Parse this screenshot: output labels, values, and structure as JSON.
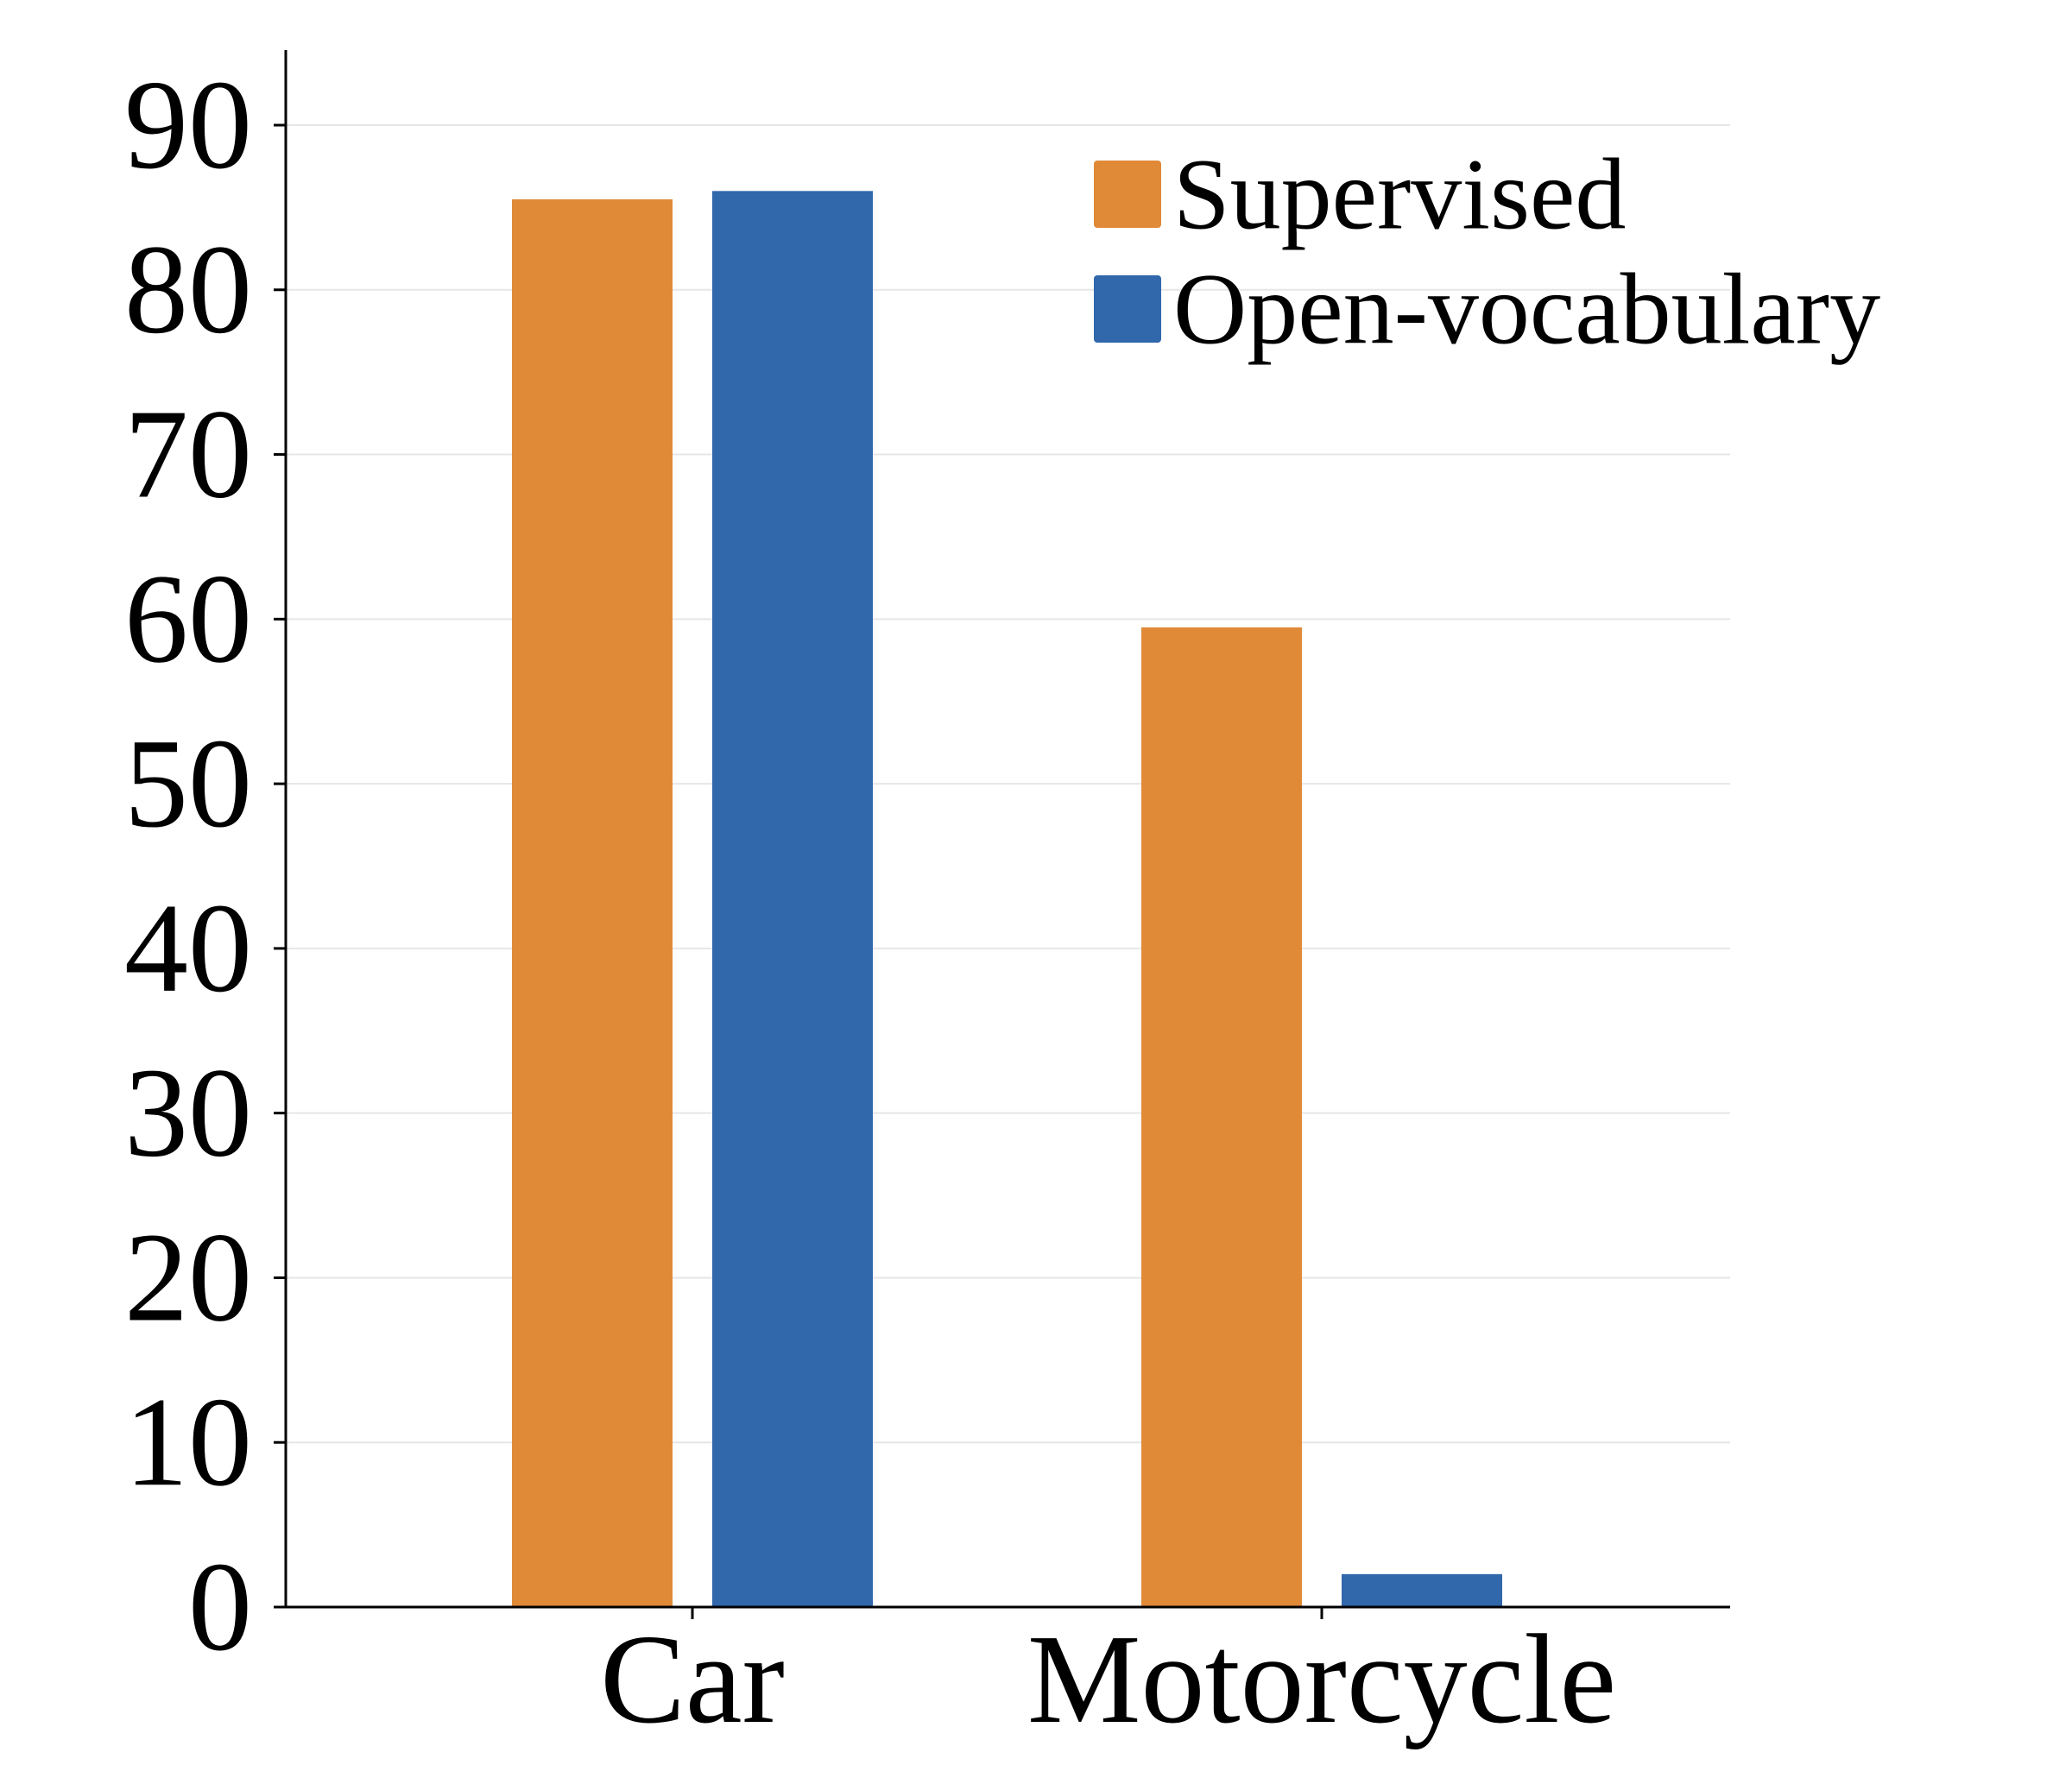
{
  "chart_data": {
    "type": "bar",
    "title": "",
    "xlabel": "",
    "ylabel": "",
    "categories": [
      "Car",
      "Motorcycle"
    ],
    "series": [
      {
        "name": "Supervised",
        "color": "#e08a38",
        "values": [
          85.5,
          59.5
        ]
      },
      {
        "name": "Open-vocabulary",
        "color": "#3167ab",
        "values": [
          86.0,
          2.0
        ]
      }
    ],
    "ylim": [
      0,
      90
    ],
    "yticks": [
      0,
      10,
      20,
      30,
      40,
      50,
      60,
      70,
      80,
      90
    ],
    "ytick_labels": [
      "0",
      "10",
      "20",
      "30",
      "40",
      "50",
      "60",
      "70",
      "80",
      "90"
    ],
    "grid": true,
    "grid_axis": "y",
    "grid_color": "#e6e6e6",
    "axis_color": "#000000",
    "legend": {
      "position": "top-right",
      "frame": false
    }
  }
}
